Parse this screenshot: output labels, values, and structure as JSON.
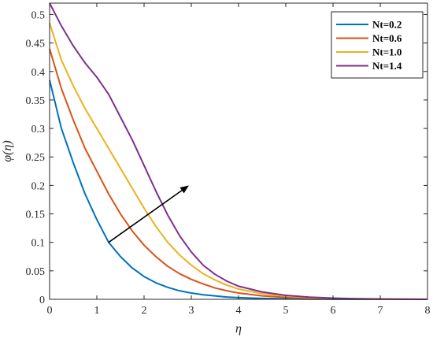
{
  "chart_data": {
    "type": "line",
    "xlabel": "η",
    "ylabel": "φ(η)",
    "xlim": [
      0,
      8
    ],
    "ylim": [
      0,
      0.52
    ],
    "xticks": [
      "0",
      "1",
      "2",
      "3",
      "4",
      "5",
      "6",
      "7",
      "8"
    ],
    "yticks": [
      "0",
      "0.05",
      "0.1",
      "0.15",
      "0.2",
      "0.25",
      "0.3",
      "0.35",
      "0.4",
      "0.45",
      "0.5"
    ],
    "grid": false,
    "legend_position": "top-right",
    "annotation": "arrow indicating increasing Nt",
    "x": [
      0,
      0.25,
      0.5,
      0.75,
      1,
      1.25,
      1.5,
      1.75,
      2,
      2.25,
      2.5,
      2.75,
      3,
      3.25,
      3.5,
      3.75,
      4,
      4.5,
      5,
      5.5,
      6,
      6.5,
      7,
      7.5,
      8
    ],
    "series": [
      {
        "name": "Nt=0.2",
        "color": "#0072BD",
        "values": [
          0.385,
          0.3,
          0.24,
          0.185,
          0.14,
          0.1,
          0.075,
          0.055,
          0.04,
          0.029,
          0.021,
          0.015,
          0.011,
          0.008,
          0.006,
          0.004,
          0.003,
          0.0015,
          0.0008,
          0.0004,
          0.0002,
          0.0001,
          0.0,
          0.0,
          0.0
        ]
      },
      {
        "name": "Nt=0.6",
        "color": "#D95319",
        "values": [
          0.44,
          0.37,
          0.315,
          0.265,
          0.225,
          0.185,
          0.15,
          0.12,
          0.095,
          0.075,
          0.058,
          0.045,
          0.035,
          0.027,
          0.02,
          0.015,
          0.011,
          0.006,
          0.0035,
          0.002,
          0.001,
          0.0005,
          0.0002,
          0.0001,
          0.0
        ]
      },
      {
        "name": "Nt=1.0",
        "color": "#EDB120",
        "values": [
          0.485,
          0.42,
          0.375,
          0.335,
          0.3,
          0.265,
          0.23,
          0.195,
          0.16,
          0.128,
          0.1,
          0.078,
          0.06,
          0.045,
          0.034,
          0.025,
          0.018,
          0.01,
          0.0055,
          0.003,
          0.0015,
          0.0008,
          0.0004,
          0.0002,
          0.0
        ]
      },
      {
        "name": "Nt=1.4",
        "color": "#7E2F8E",
        "values": [
          0.52,
          0.48,
          0.445,
          0.415,
          0.39,
          0.36,
          0.32,
          0.28,
          0.235,
          0.19,
          0.148,
          0.112,
          0.083,
          0.06,
          0.044,
          0.032,
          0.023,
          0.013,
          0.007,
          0.0038,
          0.002,
          0.001,
          0.0005,
          0.0002,
          0.0
        ]
      }
    ],
    "arrow": {
      "from": [
        1.25,
        0.1
      ],
      "to": [
        2.95,
        0.2
      ]
    }
  }
}
